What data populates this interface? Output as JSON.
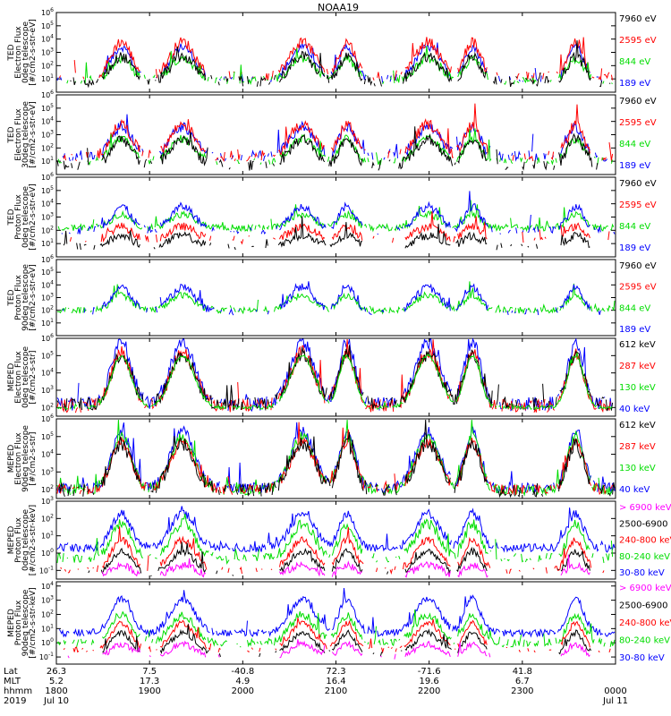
{
  "title": "NOAA19",
  "colors": {
    "blue": "#0000ff",
    "red": "#ff0000",
    "green": "#00dd00",
    "black": "#000000",
    "magenta": "#ff00ff"
  },
  "chart_data": [
    {
      "type": "line",
      "ylabel": [
        "TED",
        "Electron Flux",
        "0deg telescope",
        "[#/cm2-s-str-eV]"
      ],
      "yticks": [
        "10^1",
        "10^2",
        "10^3",
        "10^4",
        "10^5",
        "10^6"
      ],
      "ylim_exp": [
        0,
        6
      ],
      "legend": [
        {
          "label": "7960 eV",
          "color": "black"
        },
        {
          "label": "2595 eV",
          "color": "red"
        },
        {
          "label": "844 eV",
          "color": "green"
        },
        {
          "label": "189 eV",
          "color": "blue"
        }
      ],
      "series": [
        {
          "color": "blue",
          "base": 1.0,
          "peak": 2.4,
          "noise": 0.3,
          "sparse": 0.6
        },
        {
          "color": "red",
          "base": 1.2,
          "peak": 2.6,
          "noise": 0.4,
          "sparse": 0.55
        },
        {
          "color": "green",
          "base": 0.9,
          "peak": 1.6,
          "noise": 0.3,
          "sparse": 0.5
        },
        {
          "color": "black",
          "base": 0.8,
          "peak": 1.9,
          "noise": 0.4,
          "sparse": 0.5
        }
      ]
    },
    {
      "type": "line",
      "ylabel": [
        "TED",
        "Electron Flux",
        "30deg telescope",
        "[#/cm2-s-str-eV]"
      ],
      "yticks": [
        "10^1",
        "10^2",
        "10^3",
        "10^4",
        "10^5",
        "10^6"
      ],
      "ylim_exp": [
        0,
        6
      ],
      "legend": [
        {
          "label": "7960 eV",
          "color": "black"
        },
        {
          "label": "2595 eV",
          "color": "red"
        },
        {
          "label": "844 eV",
          "color": "green"
        },
        {
          "label": "189 eV",
          "color": "blue"
        }
      ],
      "series": [
        {
          "color": "blue",
          "base": 1.4,
          "peak": 2.2,
          "noise": 0.4,
          "sparse": 0.5
        },
        {
          "color": "red",
          "base": 1.4,
          "peak": 2.4,
          "noise": 0.4,
          "sparse": 0.5
        },
        {
          "color": "green",
          "base": 1.0,
          "peak": 1.7,
          "noise": 0.3,
          "sparse": 0.45
        },
        {
          "color": "black",
          "base": 0.7,
          "peak": 2.0,
          "noise": 0.4,
          "sparse": 0.6
        }
      ]
    },
    {
      "type": "line",
      "ylabel": [
        "TED",
        "Proton Flux",
        "0deg telescope",
        "[#/cm2-s-str-eV]"
      ],
      "yticks": [
        "10^1",
        "10^2",
        "10^3",
        "10^4",
        "10^5",
        "10^6"
      ],
      "ylim_exp": [
        0,
        6
      ],
      "legend": [
        {
          "label": "7960 eV",
          "color": "black"
        },
        {
          "label": "2595 eV",
          "color": "red"
        },
        {
          "label": "844 eV",
          "color": "green"
        },
        {
          "label": "189 eV",
          "color": "blue"
        }
      ],
      "series": [
        {
          "color": "green",
          "base": 2.2,
          "peak": 1.0,
          "noise": 0.25,
          "sparse": 0.1
        },
        {
          "color": "blue",
          "base": 2.0,
          "peak": 1.8,
          "noise": 0.3,
          "sparse": 0.5
        },
        {
          "color": "red",
          "base": 1.3,
          "peak": 1.0,
          "noise": 0.3,
          "sparse": 0.7
        },
        {
          "color": "black",
          "base": 0.8,
          "peak": 0.8,
          "noise": 0.3,
          "sparse": 0.75
        }
      ]
    },
    {
      "type": "line",
      "ylabel": [
        "TED",
        "Proton Flux",
        "90deg telescope",
        "[#/cm2-s-str-eV]"
      ],
      "yticks": [
        "10^1",
        "10^2",
        "10^3",
        "10^4",
        "10^5",
        "10^6"
      ],
      "ylim_exp": [
        0,
        6
      ],
      "legend": [
        {
          "label": "7960 eV",
          "color": "black"
        },
        {
          "label": "2595 eV",
          "color": "red"
        },
        {
          "label": "844 eV",
          "color": "green"
        },
        {
          "label": "189 eV",
          "color": "blue"
        }
      ],
      "series": [
        {
          "color": "green",
          "base": 2.0,
          "peak": 1.2,
          "noise": 0.25,
          "sparse": 0.15
        },
        {
          "color": "blue",
          "base": 1.9,
          "peak": 1.9,
          "noise": 0.3,
          "sparse": 0.6
        }
      ]
    },
    {
      "type": "line",
      "ylabel": [
        "MEPED",
        "Electron Flux",
        "0deg telescope",
        "[#/cm2-s-str]"
      ],
      "yticks": [
        "10^2",
        "10^3",
        "10^4",
        "10^5",
        "10^6"
      ],
      "ylim_exp": [
        1.5,
        6
      ],
      "legend": [
        {
          "label": "612 keV",
          "color": "black"
        },
        {
          "label": "287 keV",
          "color": "red"
        },
        {
          "label": "130 keV",
          "color": "green"
        },
        {
          "label": "40 keV",
          "color": "blue"
        }
      ],
      "series": [
        {
          "color": "blue",
          "base": 2.2,
          "peak": 3.6,
          "noise": 0.4,
          "sparse": 0.2
        },
        {
          "color": "red",
          "base": 2.1,
          "peak": 3.1,
          "noise": 0.4,
          "sparse": 0.2
        },
        {
          "color": "black",
          "base": 2.2,
          "peak": 2.9,
          "noise": 0.4,
          "sparse": 0.3
        },
        {
          "color": "green",
          "base": 2.0,
          "peak": 3.0,
          "noise": 0.1,
          "sparse": 0.1
        }
      ]
    },
    {
      "type": "line",
      "ylabel": [
        "MEPED",
        "Electron Flux",
        "90deg telescope",
        "[#/cm2-s-str]"
      ],
      "yticks": [
        "10^2",
        "10^3",
        "10^4",
        "10^5",
        "10^6"
      ],
      "ylim_exp": [
        1.5,
        6
      ],
      "legend": [
        {
          "label": "612 keV",
          "color": "black"
        },
        {
          "label": "287 keV",
          "color": "red"
        },
        {
          "label": "130 keV",
          "color": "green"
        },
        {
          "label": "40 keV",
          "color": "blue"
        }
      ],
      "series": [
        {
          "color": "blue",
          "base": 2.1,
          "peak": 3.2,
          "noise": 0.3,
          "sparse": 0.15
        },
        {
          "color": "green",
          "base": 2.0,
          "peak": 3.0,
          "noise": 0.3,
          "sparse": 0.15
        },
        {
          "color": "red",
          "base": 2.0,
          "peak": 2.7,
          "noise": 0.3,
          "sparse": 0.3
        },
        {
          "color": "black",
          "base": 2.0,
          "peak": 2.6,
          "noise": 0.4,
          "sparse": 0.4
        }
      ]
    },
    {
      "type": "line",
      "ylabel": [
        "MEPED",
        "Proton Flux",
        "0deg telescope",
        "[#/cm2-s-str-keV]"
      ],
      "yticks": [
        "10^-1",
        "10^0",
        "10^1",
        "10^2",
        "10^3"
      ],
      "ylim_exp": [
        -1.5,
        3
      ],
      "legend": [
        {
          "label": "> 6900 keV",
          "color": "magenta"
        },
        {
          "label": "2500-6900",
          "color": "black"
        },
        {
          "label": "240-800 keV",
          "color": "red"
        },
        {
          "label": "80-240 keV",
          "color": "green"
        },
        {
          "label": "30-80 keV",
          "color": "blue"
        }
      ],
      "series": [
        {
          "color": "blue",
          "base": 0.3,
          "peak": 2.0,
          "noise": 0.25,
          "sparse": 0.05
        },
        {
          "color": "green",
          "base": -0.3,
          "peak": 2.0,
          "noise": 0.3,
          "sparse": 0.3
        },
        {
          "color": "red",
          "base": -1.0,
          "peak": 1.8,
          "noise": 0.2,
          "sparse": 0.6
        },
        {
          "color": "black",
          "base": -1.2,
          "peak": 1.3,
          "noise": 0.2,
          "sparse": 0.8
        },
        {
          "color": "magenta",
          "base": -1.3,
          "peak": 0.6,
          "noise": 0.2,
          "sparse": 0.9
        }
      ]
    },
    {
      "type": "line",
      "ylabel": [
        "MEPED",
        "Proton Flux",
        "90deg telescope",
        "[#/cm2-s-str-keV]"
      ],
      "yticks": [
        "10^-1",
        "10^0",
        "10^1",
        "10^2",
        "10^3",
        "10^4"
      ],
      "ylim_exp": [
        -1.5,
        4.3
      ],
      "legend": [
        {
          "label": "> 6900 keV",
          "color": "magenta"
        },
        {
          "label": "2500-6900",
          "color": "black"
        },
        {
          "label": "240-800 keV",
          "color": "red"
        },
        {
          "label": "80-240 keV",
          "color": "green"
        },
        {
          "label": "30-80 keV",
          "color": "blue"
        }
      ],
      "series": [
        {
          "color": "blue",
          "base": 0.7,
          "peak": 2.4,
          "noise": 0.25,
          "sparse": 0.05
        },
        {
          "color": "green",
          "base": 0.0,
          "peak": 2.0,
          "noise": 0.3,
          "sparse": 0.3
        },
        {
          "color": "red",
          "base": -0.5,
          "peak": 1.9,
          "noise": 0.2,
          "sparse": 0.6
        },
        {
          "color": "black",
          "base": -0.8,
          "peak": 1.5,
          "noise": 0.2,
          "sparse": 0.85
        },
        {
          "color": "magenta",
          "base": -1.0,
          "peak": 0.9,
          "noise": 0.2,
          "sparse": 0.9
        }
      ]
    }
  ],
  "passes": [
    {
      "center": 0.115,
      "width": 0.025
    },
    {
      "center": 0.225,
      "width": 0.03
    },
    {
      "center": 0.44,
      "width": 0.03
    },
    {
      "center": 0.52,
      "width": 0.02
    },
    {
      "center": 0.665,
      "width": 0.03
    },
    {
      "center": 0.745,
      "width": 0.02
    },
    {
      "center": 0.93,
      "width": 0.02
    }
  ],
  "xaxis": {
    "row_labels": [
      "Lat",
      "MLT",
      "hhmm",
      "2019"
    ],
    "columns": [
      {
        "frac": 0.0,
        "lat": "26.3",
        "mlt": "5.2",
        "hhmm": "1800",
        "date": "Jul 10"
      },
      {
        "frac": 0.2,
        "lat": "7.5",
        "mlt": "17.3",
        "hhmm": "1900",
        "date": ""
      },
      {
        "frac": 0.4,
        "lat": "-40.8",
        "mlt": "4.9",
        "hhmm": "2000",
        "date": ""
      },
      {
        "frac": 0.6,
        "lat": "72.3",
        "mlt": "16.4",
        "hhmm": "2100",
        "date": ""
      },
      {
        "frac": 0.8,
        "lat": "-71.6",
        "mlt": "19.6",
        "hhmm": "2200",
        "date": ""
      },
      {
        "frac": 1.0,
        "lat": "41.8",
        "mlt": "6.7",
        "hhmm": "2300",
        "date": ""
      },
      {
        "frac": 1.2,
        "lat": "",
        "mlt": "",
        "hhmm": "0000",
        "date": "Jul 11"
      }
    ]
  }
}
